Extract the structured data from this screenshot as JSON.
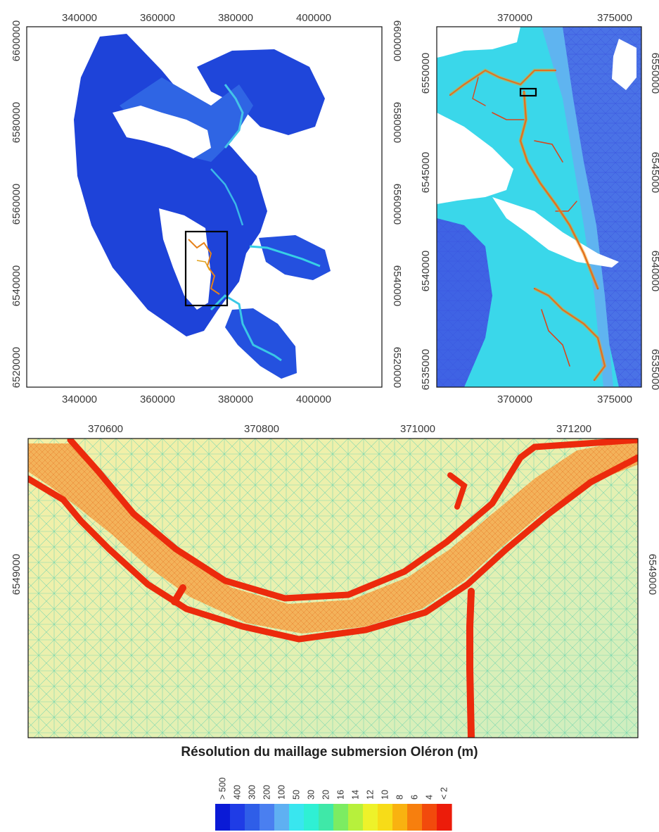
{
  "figure_title": "Résolution du maillage submersion Oléron (m)",
  "panels": {
    "overview": {
      "x_ticks": [
        "340000",
        "360000",
        "380000",
        "400000"
      ],
      "y_ticks": [
        "6600000",
        "6580000",
        "6560000",
        "6540000",
        "6520000"
      ]
    },
    "zoom_medium": {
      "x_ticks": [
        "370000",
        "375000"
      ],
      "y_ticks": [
        "6550000",
        "6545000",
        "6540000",
        "6535000"
      ]
    },
    "zoom_fine": {
      "x_ticks": [
        "370600",
        "370800",
        "371000",
        "371200"
      ],
      "y_ticks": [
        "6549000"
      ]
    }
  },
  "colorbar": {
    "labels": [
      "> 500",
      "400",
      "300",
      "200",
      "100",
      "50",
      "30",
      "20",
      "16",
      "14",
      "12",
      "10",
      "8",
      "6",
      "4",
      "< 2"
    ],
    "colors": [
      "#0a1ad6",
      "#1f3ce6",
      "#2f5ee8",
      "#4a7ff0",
      "#5fb0f2",
      "#39e6ef",
      "#2ff0d4",
      "#3fe8a8",
      "#7cec62",
      "#b7f03c",
      "#eef22a",
      "#f7dc18",
      "#f9b210",
      "#f77f0e",
      "#f24a0c",
      "#ec1c0a"
    ]
  },
  "palette": {
    "water_deep": "#1f45d8",
    "mesh_mid": "#35d0ea",
    "channel": "#d8421c",
    "fine_bg": "#f1f0b6"
  }
}
